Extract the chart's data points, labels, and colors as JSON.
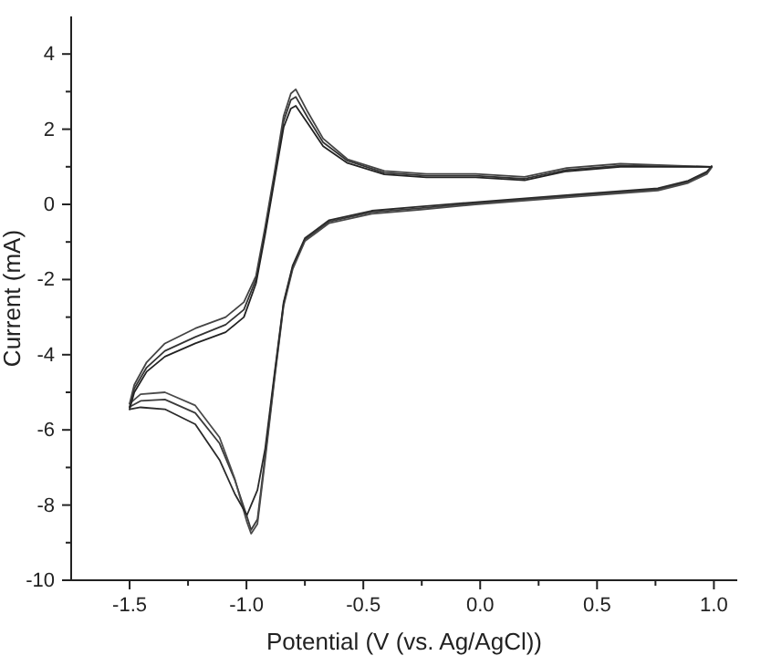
{
  "chart_data": {
    "type": "line",
    "xlabel": "Potential (V (vs. Ag/AgCl))",
    "ylabel": "Current (mA)",
    "xlim": [
      -1.75,
      1.1
    ],
    "xticks": [
      {
        "value": -1.5,
        "label": "-1.5"
      },
      {
        "value": -1.25,
        "label": null
      },
      {
        "value": -1.0,
        "label": "-1.0"
      },
      {
        "value": -0.75,
        "label": null
      },
      {
        "value": -0.5,
        "label": "-0.5"
      },
      {
        "value": -0.25,
        "label": null
      },
      {
        "value": 0,
        "label": "0.0"
      },
      {
        "value": 0.25,
        "label": null
      },
      {
        "value": 0.5,
        "label": "0.5"
      },
      {
        "value": 0.75,
        "label": null
      },
      {
        "value": 1.0,
        "label": "1.0"
      }
    ],
    "ylim": [
      -10,
      5
    ],
    "yticks": [
      -10,
      {
        "value": -9,
        "label": null
      },
      -8,
      {
        "value": -7,
        "label": null
      },
      -6,
      {
        "value": -5,
        "label": null
      },
      -4,
      {
        "value": -3,
        "label": null
      },
      -2,
      {
        "value": -1,
        "label": null
      },
      0,
      {
        "value": 1,
        "label": null
      },
      2,
      {
        "value": 3,
        "label": null
      },
      4
    ],
    "grid": false,
    "marker": "none",
    "line_style": "solid",
    "series": [
      {
        "color": "#333333",
        "x": [
          0.99,
          0.6,
          0.37,
          0.19,
          -0.02,
          -0.23,
          -0.41,
          -0.568,
          -0.672,
          -0.737,
          -0.789,
          -0.81,
          -0.841,
          -0.88,
          -0.92,
          -0.959,
          -1.011,
          -1.089,
          -1.219,
          -1.349,
          -1.427,
          -1.48,
          -1.5
        ],
        "values": [
          1.0,
          1.03,
          0.92,
          0.68,
          0.76,
          0.76,
          0.84,
          1.16,
          1.65,
          2.3,
          2.86,
          2.78,
          2.21,
          0.76,
          -0.7,
          -1.99,
          -2.8,
          -3.2,
          -3.53,
          -3.9,
          -4.34,
          -4.9,
          -5.39
        ]
      },
      {
        "color": "#3a3a3a",
        "x": [
          -1.5,
          -1.453,
          -1.349,
          -1.219,
          -1.115,
          -1.05,
          -0.998,
          -0.98,
          -0.953,
          -0.92,
          -0.88,
          -0.841,
          -0.802,
          -0.75,
          -0.646,
          -0.464,
          -0.255,
          -0.02,
          0.42,
          0.76,
          0.89,
          0.97,
          0.99
        ],
        "values": [
          -5.39,
          -5.23,
          -5.19,
          -5.55,
          -6.36,
          -7.33,
          -8.3,
          -8.66,
          -8.38,
          -6.68,
          -4.58,
          -2.64,
          -1.67,
          -0.94,
          -0.46,
          -0.21,
          -0.1,
          0.03,
          0.24,
          0.4,
          0.6,
          0.84,
          1.0
        ]
      },
      {
        "color": "#444444",
        "x": [
          0.99,
          0.6,
          0.37,
          0.19,
          -0.02,
          -0.23,
          -0.41,
          -0.568,
          -0.672,
          -0.737,
          -0.789,
          -0.81,
          -0.841,
          -0.88,
          -0.92,
          -0.959,
          -1.011,
          -1.089,
          -1.219,
          -1.349,
          -1.427,
          -1.48,
          -1.5
        ],
        "values": [
          1.0,
          1.08,
          0.97,
          0.73,
          0.81,
          0.81,
          0.89,
          1.2,
          1.75,
          2.45,
          3.06,
          2.95,
          2.35,
          0.85,
          -0.6,
          -1.9,
          -2.6,
          -3.0,
          -3.3,
          -3.7,
          -4.2,
          -4.8,
          -5.3
        ]
      },
      {
        "color": "#4a4a4a",
        "x": [
          -1.5,
          -1.453,
          -1.349,
          -1.219,
          -1.115,
          -1.05,
          -0.998,
          -0.98,
          -0.953,
          -0.92,
          -0.88,
          -0.841,
          -0.802,
          -0.75,
          -0.646,
          -0.464,
          -0.255,
          -0.02,
          0.42,
          0.76,
          0.89,
          0.97,
          0.99
        ],
        "values": [
          -5.3,
          -5.05,
          -5.0,
          -5.35,
          -6.2,
          -7.3,
          -8.45,
          -8.76,
          -8.5,
          -6.8,
          -4.65,
          -2.7,
          -1.72,
          -0.98,
          -0.5,
          -0.25,
          -0.14,
          0.0,
          0.21,
          0.37,
          0.57,
          0.81,
          0.98
        ]
      },
      {
        "color": "#222222",
        "x": [
          0.99,
          0.6,
          0.37,
          0.19,
          -0.02,
          -0.23,
          -0.41,
          -0.568,
          -0.672,
          -0.737,
          -0.789,
          -0.81,
          -0.841,
          -0.88,
          -0.92,
          -0.959,
          -1.011,
          -1.089,
          -1.219,
          -1.349,
          -1.427,
          -1.48,
          -1.5
        ],
        "values": [
          1.0,
          1.0,
          0.88,
          0.64,
          0.72,
          0.72,
          0.8,
          1.1,
          1.55,
          2.15,
          2.62,
          2.55,
          2.05,
          0.65,
          -0.8,
          -2.1,
          -3.0,
          -3.4,
          -3.7,
          -4.05,
          -4.45,
          -5.0,
          -5.45
        ]
      },
      {
        "color": "#2a2a2a",
        "x": [
          -1.5,
          -1.453,
          -1.349,
          -1.219,
          -1.115,
          -1.05,
          -0.998,
          -0.98,
          -0.953,
          -0.92,
          -0.88,
          -0.841,
          -0.802,
          -0.75,
          -0.646,
          -0.464,
          -0.255,
          -0.02,
          0.42,
          0.76,
          0.89,
          0.97,
          0.99
        ],
        "values": [
          -5.45,
          -5.4,
          -5.45,
          -5.85,
          -6.8,
          -7.7,
          -8.27,
          -8.0,
          -7.6,
          -6.5,
          -4.5,
          -2.6,
          -1.62,
          -0.9,
          -0.42,
          -0.17,
          -0.06,
          0.06,
          0.27,
          0.43,
          0.63,
          0.87,
          1.02
        ]
      }
    ]
  }
}
